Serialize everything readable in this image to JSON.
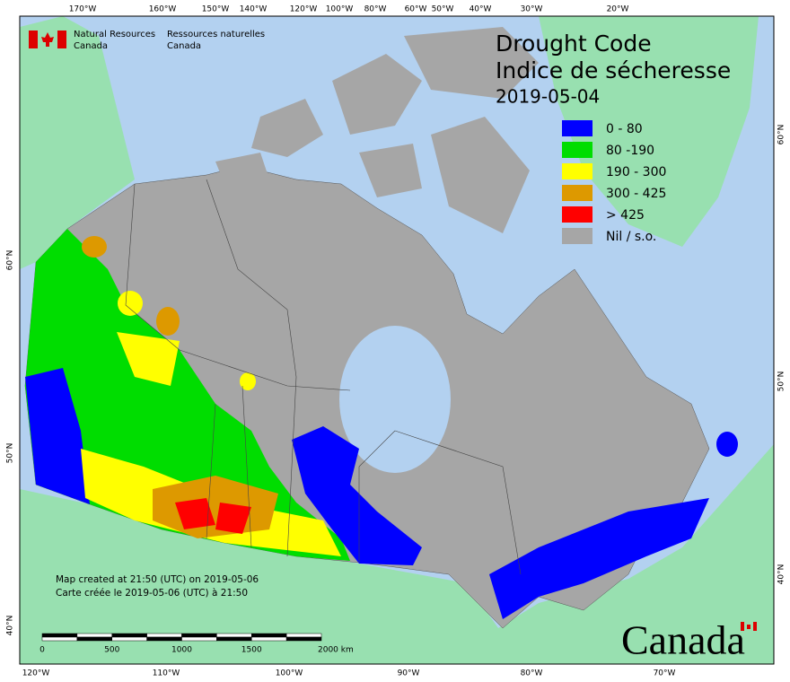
{
  "header": {
    "agency_en": [
      "Natural Resources",
      "Canada"
    ],
    "agency_fr": [
      "Ressources naturelles",
      "Canada"
    ]
  },
  "title": {
    "en": "Drought Code",
    "fr": "Indice de sécheresse",
    "date": "2019-05-04"
  },
  "legend": [
    {
      "label": "0 - 80",
      "color": "#0000ff"
    },
    {
      "label": "80 -190",
      "color": "#00dd00"
    },
    {
      "label": "190 - 300",
      "color": "#ffff00"
    },
    {
      "label": "300 - 425",
      "color": "#dd9900"
    },
    {
      "label": "> 425",
      "color": "#ff0000"
    },
    {
      "label": "Nil / s.o.",
      "color": "#a6a6a6"
    }
  ],
  "graticule": {
    "top": [
      "170°W",
      "160°W",
      "150°W",
      "140°W",
      "120°W",
      "100°W",
      "80°W",
      "60°W",
      "50°W",
      "40°W",
      "30°W",
      "20°W"
    ],
    "bottom": [
      "120°W",
      "110°W",
      "100°W",
      "90°W",
      "80°W",
      "70°W"
    ],
    "left": [
      "60°N",
      "50°N",
      "40°N"
    ],
    "right": [
      "60°N",
      "50°N",
      "40°N"
    ]
  },
  "credits": [
    "Map created at 21:50 (UTC) on 2019-05-06",
    "Carte créée le 2019-05-06 (UTC) à 21:50"
  ],
  "scale_bar": {
    "labels": [
      "0",
      "500",
      "1000",
      "1500",
      "2000 km"
    ]
  },
  "wordmark": "Canada"
}
